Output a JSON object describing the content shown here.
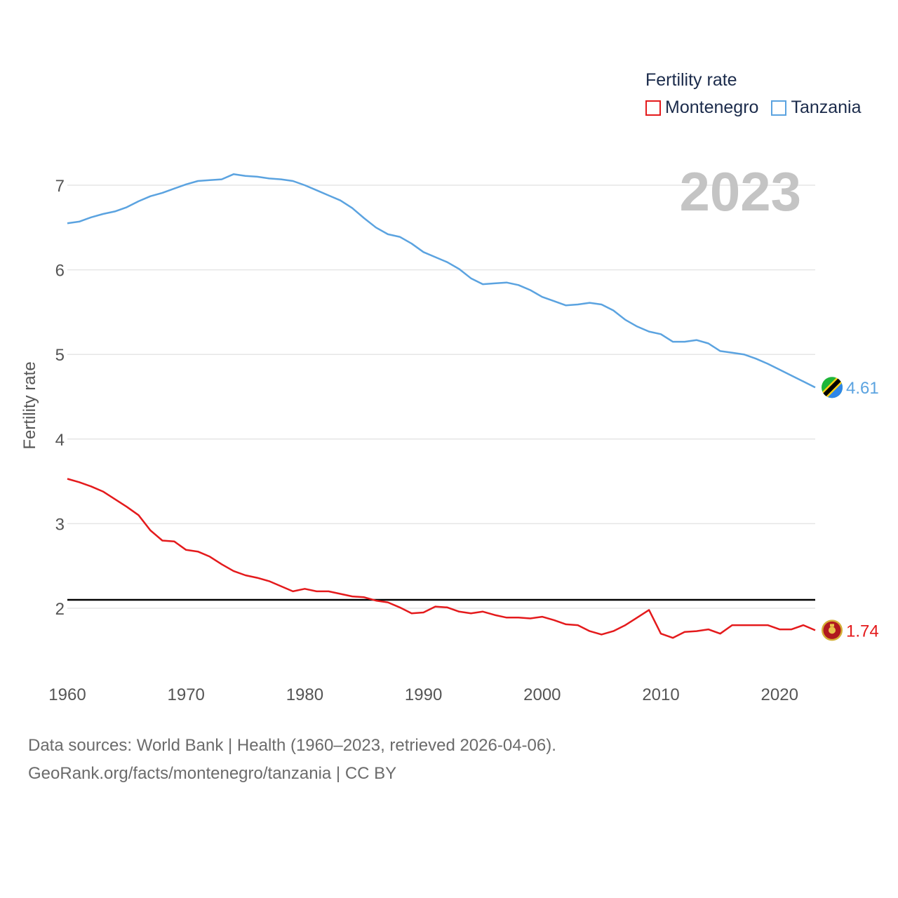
{
  "chart_data": {
    "type": "line",
    "title": "",
    "xlabel": "",
    "ylabel": "Fertility rate",
    "xlim": [
      1960,
      2023
    ],
    "ylim": [
      1.2,
      7.5
    ],
    "yticks": [
      2,
      3,
      4,
      5,
      6,
      7
    ],
    "xticks": [
      1960,
      1970,
      1980,
      1990,
      2000,
      2010,
      2020
    ],
    "reference_line": 2.1,
    "current_year": "2023",
    "legend_title": "Fertility rate",
    "x": [
      1960,
      1961,
      1962,
      1963,
      1964,
      1965,
      1966,
      1967,
      1968,
      1969,
      1970,
      1971,
      1972,
      1973,
      1974,
      1975,
      1976,
      1977,
      1978,
      1979,
      1980,
      1981,
      1982,
      1983,
      1984,
      1985,
      1986,
      1987,
      1988,
      1989,
      1990,
      1991,
      1992,
      1993,
      1994,
      1995,
      1996,
      1997,
      1998,
      1999,
      2000,
      2001,
      2002,
      2003,
      2004,
      2005,
      2006,
      2007,
      2008,
      2009,
      2010,
      2011,
      2012,
      2013,
      2014,
      2015,
      2016,
      2017,
      2018,
      2019,
      2020,
      2021,
      2022,
      2023
    ],
    "series": [
      {
        "name": "Montenegro",
        "color": "#e41a1c",
        "end_label": "1.74",
        "values": [
          3.53,
          3.49,
          3.44,
          3.38,
          3.29,
          3.2,
          3.1,
          2.92,
          2.8,
          2.79,
          2.69,
          2.67,
          2.61,
          2.52,
          2.44,
          2.39,
          2.36,
          2.32,
          2.26,
          2.2,
          2.23,
          2.2,
          2.2,
          2.17,
          2.14,
          2.13,
          2.09,
          2.07,
          2.01,
          1.94,
          1.95,
          2.02,
          2.01,
          1.96,
          1.94,
          1.96,
          1.92,
          1.89,
          1.89,
          1.88,
          1.9,
          1.86,
          1.81,
          1.8,
          1.73,
          1.69,
          1.73,
          1.8,
          1.89,
          1.98,
          1.7,
          1.65,
          1.72,
          1.73,
          1.75,
          1.7,
          1.8,
          1.8,
          1.8,
          1.8,
          1.75,
          1.75,
          1.8,
          1.74
        ]
      },
      {
        "name": "Tanzania",
        "color": "#5ba3e0",
        "end_label": "4.61",
        "values": [
          6.55,
          6.57,
          6.62,
          6.66,
          6.69,
          6.74,
          6.81,
          6.87,
          6.91,
          6.96,
          7.01,
          7.05,
          7.06,
          7.07,
          7.13,
          7.11,
          7.1,
          7.08,
          7.07,
          7.05,
          7.0,
          6.94,
          6.88,
          6.82,
          6.73,
          6.61,
          6.5,
          6.42,
          6.39,
          6.31,
          6.21,
          6.15,
          6.09,
          6.01,
          5.9,
          5.83,
          5.84,
          5.85,
          5.82,
          5.76,
          5.68,
          5.63,
          5.58,
          5.59,
          5.61,
          5.59,
          5.52,
          5.41,
          5.33,
          5.27,
          5.24,
          5.15,
          5.15,
          5.17,
          5.13,
          5.04,
          5.02,
          5.0,
          4.95,
          4.89,
          4.82,
          4.75,
          4.68,
          4.61
        ]
      }
    ]
  },
  "source": {
    "line1": "Data sources: World Bank | Health (1960–2023, retrieved 2026-04-06).",
    "line2": "GeoRank.org/facts/montenegro/tanzania | CC BY"
  },
  "flags": {
    "montenegro": "montenegro-flag-icon",
    "tanzania": "tanzania-flag-icon"
  }
}
